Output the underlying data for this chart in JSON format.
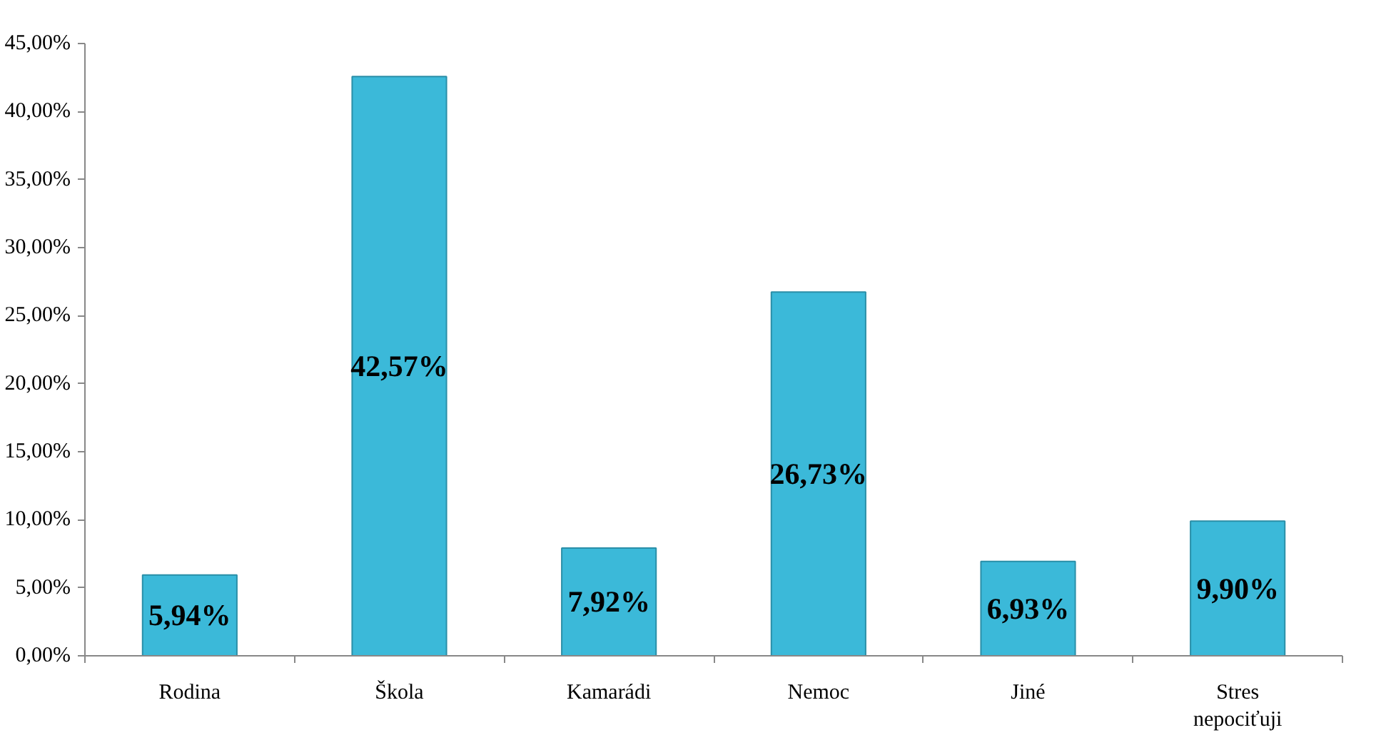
{
  "chart_data": {
    "type": "bar",
    "categories": [
      "Rodina",
      "Škola",
      "Kamarádi",
      "Nemoc",
      "Jiné",
      "Stres nepociťuji"
    ],
    "values": [
      5.94,
      42.57,
      7.92,
      26.73,
      6.93,
      9.9
    ],
    "color": "#3bb9d9",
    "value_labels": [
      "5,94%",
      "42,57%",
      "7,92%",
      "26,73%",
      "6,93%",
      "9,90%"
    ],
    "ylim": [
      0,
      45
    ],
    "yticks": [
      {
        "value": 0,
        "label": "0,00%"
      },
      {
        "value": 5,
        "label": "5,00%"
      },
      {
        "value": 10,
        "label": "10,00%"
      },
      {
        "value": 15,
        "label": "15,00%"
      },
      {
        "value": 20,
        "label": "20,00%"
      },
      {
        "value": 25,
        "label": "25,00%"
      },
      {
        "value": 30,
        "label": "30,00%"
      },
      {
        "value": 35,
        "label": "35,00%"
      },
      {
        "value": 40,
        "label": "40,00%"
      },
      {
        "value": 45,
        "label": "45,00%"
      }
    ],
    "grid": false
  }
}
